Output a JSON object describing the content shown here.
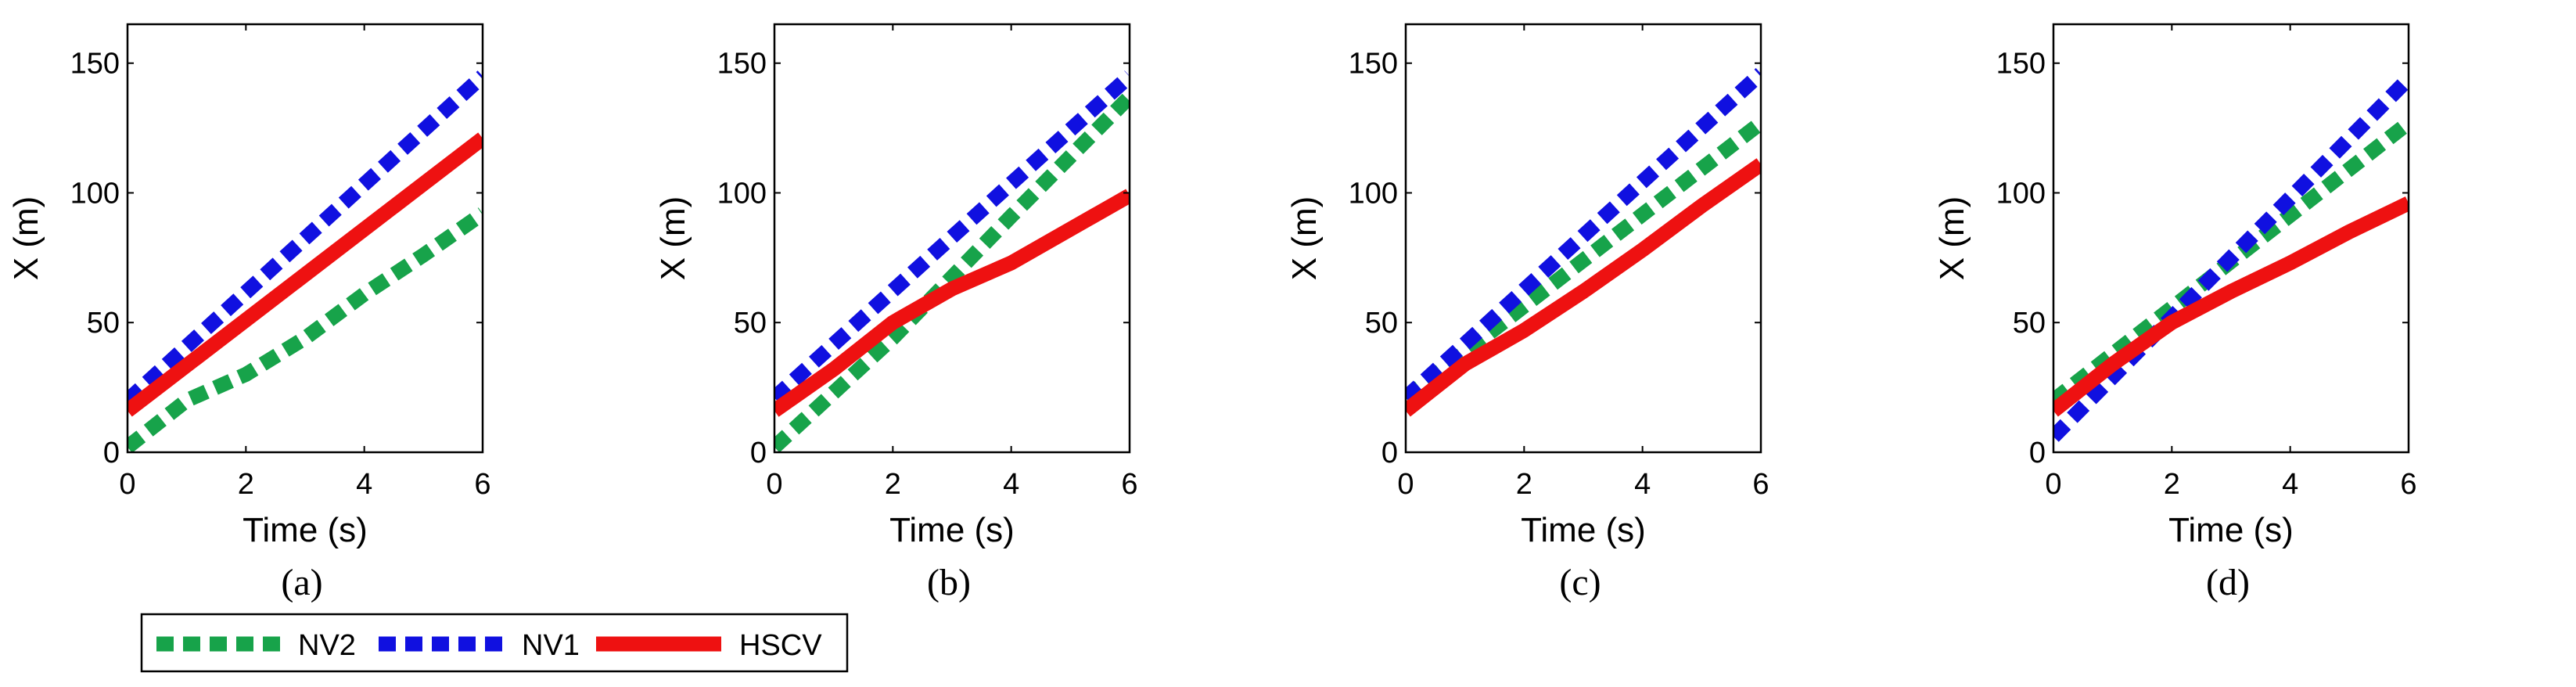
{
  "colors": {
    "NV2": "#17a34a",
    "NV1": "#1010e0",
    "HSCV": "#ee1111",
    "axis": "#000000"
  },
  "legend": [
    {
      "name": "NV2",
      "style": "dotted"
    },
    {
      "name": "NV1",
      "style": "dotted"
    },
    {
      "name": "HSCV",
      "style": "solid"
    }
  ],
  "chart_data": [
    {
      "type": "line",
      "caption": "(a)",
      "xlabel": "Time (s)",
      "ylabel": "X (m)",
      "xlim": [
        0,
        6
      ],
      "ylim": [
        0,
        165
      ],
      "xticks": [
        0,
        2,
        4,
        6
      ],
      "yticks": [
        0,
        50,
        100,
        150
      ],
      "series": [
        {
          "name": "NV2",
          "x": [
            0,
            1,
            2,
            3,
            4,
            5,
            6
          ],
          "y": [
            2,
            20,
            30,
            44,
            61,
            76,
            92
          ]
        },
        {
          "name": "NV1",
          "x": [
            0,
            6
          ],
          "y": [
            20,
            145
          ]
        },
        {
          "name": "HSCV",
          "x": [
            0,
            6
          ],
          "y": [
            16,
            121
          ]
        }
      ]
    },
    {
      "type": "line",
      "caption": "(b)",
      "xlabel": "Time (s)",
      "ylabel": "X (m)",
      "xlim": [
        0,
        6
      ],
      "ylim": [
        0,
        165
      ],
      "xticks": [
        0,
        2,
        4,
        6
      ],
      "yticks": [
        0,
        50,
        100,
        150
      ],
      "series": [
        {
          "name": "NV2",
          "x": [
            0,
            2,
            4,
            6
          ],
          "y": [
            2,
            44,
            91,
            137
          ]
        },
        {
          "name": "NV1",
          "x": [
            0,
            6
          ],
          "y": [
            21,
            145
          ]
        },
        {
          "name": "HSCV",
          "x": [
            0,
            1,
            2,
            3,
            4,
            5,
            6
          ],
          "y": [
            16,
            32,
            50,
            63,
            73,
            86,
            99
          ]
        }
      ]
    },
    {
      "type": "line",
      "caption": "(c)",
      "xlabel": "Time (s)",
      "ylabel": "X (m)",
      "xlim": [
        0,
        6
      ],
      "ylim": [
        0,
        165
      ],
      "xticks": [
        0,
        2,
        4,
        6
      ],
      "yticks": [
        0,
        50,
        100,
        150
      ],
      "series": [
        {
          "name": "NV2",
          "x": [
            0,
            6
          ],
          "y": [
            21,
            127
          ]
        },
        {
          "name": "NV1",
          "x": [
            0,
            6
          ],
          "y": [
            21,
            146
          ]
        },
        {
          "name": "HSCV",
          "x": [
            0,
            1,
            2,
            3,
            4,
            5,
            6
          ],
          "y": [
            16,
            34,
            47,
            62,
            78,
            95,
            111
          ]
        }
      ]
    },
    {
      "type": "line",
      "caption": "(d)",
      "xlabel": "Time (s)",
      "ylabel": "X (m)",
      "xlim": [
        0,
        6
      ],
      "ylim": [
        0,
        165
      ],
      "xticks": [
        0,
        2,
        4,
        6
      ],
      "yticks": [
        0,
        50,
        100,
        150
      ],
      "series": [
        {
          "name": "NV2",
          "x": [
            0,
            6
          ],
          "y": [
            20,
            127
          ]
        },
        {
          "name": "NV1",
          "x": [
            0,
            6
          ],
          "y": [
            6,
            144
          ]
        },
        {
          "name": "HSCV",
          "x": [
            0,
            1,
            2,
            3,
            4,
            5,
            6
          ],
          "y": [
            16,
            34,
            50,
            62,
            73,
            85,
            96
          ]
        }
      ]
    }
  ]
}
